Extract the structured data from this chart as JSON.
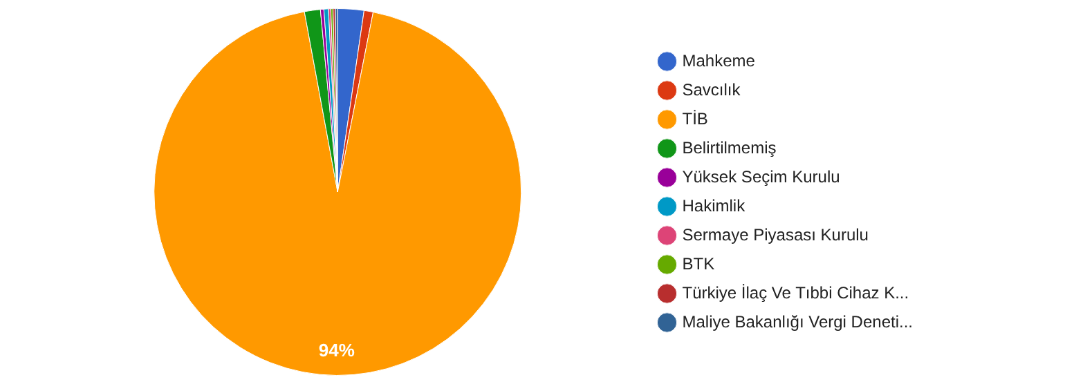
{
  "chart_data": {
    "type": "pie",
    "categories": [
      "Mahkeme",
      "Savcılık",
      "TİB",
      "Belirtilmemiş",
      "Yüksek Seçim Kurulu",
      "Hakimlik",
      "Sermaye Piyasası Kurulu",
      "BTK",
      "Türkiye İlaç Ve Tıbbi Cihaz K...",
      "Maliye Bakanlığı Vergi Deneti..."
    ],
    "values": [
      2.3,
      0.8,
      94,
      1.4,
      0.3,
      0.4,
      0.2,
      0.2,
      0.2,
      0.2
    ],
    "colors": [
      "#3366cc",
      "#dc3912",
      "#ff9900",
      "#109618",
      "#990099",
      "#0099c6",
      "#dd4477",
      "#66aa00",
      "#b82e2e",
      "#316395"
    ],
    "value_labels": [
      null,
      null,
      "94%",
      null,
      null,
      null,
      null,
      null,
      null,
      null
    ],
    "legend": "right"
  }
}
